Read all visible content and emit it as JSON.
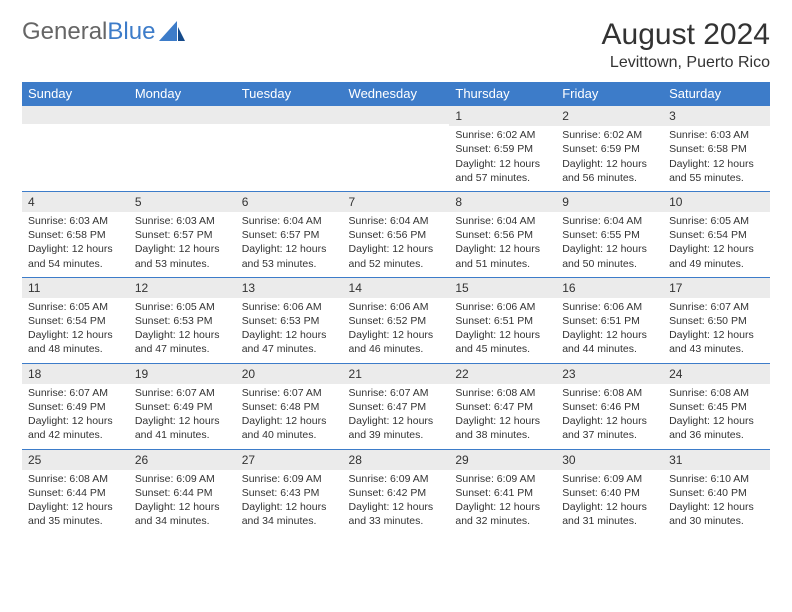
{
  "logo": {
    "text_general": "General",
    "text_blue": "Blue"
  },
  "title": "August 2024",
  "location": "Levittown, Puerto Rico",
  "colors": {
    "header_bg": "#3d7cc9",
    "header_text": "#ffffff",
    "daynum_bg": "#ebebeb",
    "border": "#3d7cc9",
    "body_text": "#333333",
    "background": "#ffffff"
  },
  "day_headers": [
    "Sunday",
    "Monday",
    "Tuesday",
    "Wednesday",
    "Thursday",
    "Friday",
    "Saturday"
  ],
  "weeks": [
    [
      {
        "n": "",
        "sunrise": "",
        "sunset": "",
        "daylight": ""
      },
      {
        "n": "",
        "sunrise": "",
        "sunset": "",
        "daylight": ""
      },
      {
        "n": "",
        "sunrise": "",
        "sunset": "",
        "daylight": ""
      },
      {
        "n": "",
        "sunrise": "",
        "sunset": "",
        "daylight": ""
      },
      {
        "n": "1",
        "sunrise": "Sunrise: 6:02 AM",
        "sunset": "Sunset: 6:59 PM",
        "daylight": "Daylight: 12 hours and 57 minutes."
      },
      {
        "n": "2",
        "sunrise": "Sunrise: 6:02 AM",
        "sunset": "Sunset: 6:59 PM",
        "daylight": "Daylight: 12 hours and 56 minutes."
      },
      {
        "n": "3",
        "sunrise": "Sunrise: 6:03 AM",
        "sunset": "Sunset: 6:58 PM",
        "daylight": "Daylight: 12 hours and 55 minutes."
      }
    ],
    [
      {
        "n": "4",
        "sunrise": "Sunrise: 6:03 AM",
        "sunset": "Sunset: 6:58 PM",
        "daylight": "Daylight: 12 hours and 54 minutes."
      },
      {
        "n": "5",
        "sunrise": "Sunrise: 6:03 AM",
        "sunset": "Sunset: 6:57 PM",
        "daylight": "Daylight: 12 hours and 53 minutes."
      },
      {
        "n": "6",
        "sunrise": "Sunrise: 6:04 AM",
        "sunset": "Sunset: 6:57 PM",
        "daylight": "Daylight: 12 hours and 53 minutes."
      },
      {
        "n": "7",
        "sunrise": "Sunrise: 6:04 AM",
        "sunset": "Sunset: 6:56 PM",
        "daylight": "Daylight: 12 hours and 52 minutes."
      },
      {
        "n": "8",
        "sunrise": "Sunrise: 6:04 AM",
        "sunset": "Sunset: 6:56 PM",
        "daylight": "Daylight: 12 hours and 51 minutes."
      },
      {
        "n": "9",
        "sunrise": "Sunrise: 6:04 AM",
        "sunset": "Sunset: 6:55 PM",
        "daylight": "Daylight: 12 hours and 50 minutes."
      },
      {
        "n": "10",
        "sunrise": "Sunrise: 6:05 AM",
        "sunset": "Sunset: 6:54 PM",
        "daylight": "Daylight: 12 hours and 49 minutes."
      }
    ],
    [
      {
        "n": "11",
        "sunrise": "Sunrise: 6:05 AM",
        "sunset": "Sunset: 6:54 PM",
        "daylight": "Daylight: 12 hours and 48 minutes."
      },
      {
        "n": "12",
        "sunrise": "Sunrise: 6:05 AM",
        "sunset": "Sunset: 6:53 PM",
        "daylight": "Daylight: 12 hours and 47 minutes."
      },
      {
        "n": "13",
        "sunrise": "Sunrise: 6:06 AM",
        "sunset": "Sunset: 6:53 PM",
        "daylight": "Daylight: 12 hours and 47 minutes."
      },
      {
        "n": "14",
        "sunrise": "Sunrise: 6:06 AM",
        "sunset": "Sunset: 6:52 PM",
        "daylight": "Daylight: 12 hours and 46 minutes."
      },
      {
        "n": "15",
        "sunrise": "Sunrise: 6:06 AM",
        "sunset": "Sunset: 6:51 PM",
        "daylight": "Daylight: 12 hours and 45 minutes."
      },
      {
        "n": "16",
        "sunrise": "Sunrise: 6:06 AM",
        "sunset": "Sunset: 6:51 PM",
        "daylight": "Daylight: 12 hours and 44 minutes."
      },
      {
        "n": "17",
        "sunrise": "Sunrise: 6:07 AM",
        "sunset": "Sunset: 6:50 PM",
        "daylight": "Daylight: 12 hours and 43 minutes."
      }
    ],
    [
      {
        "n": "18",
        "sunrise": "Sunrise: 6:07 AM",
        "sunset": "Sunset: 6:49 PM",
        "daylight": "Daylight: 12 hours and 42 minutes."
      },
      {
        "n": "19",
        "sunrise": "Sunrise: 6:07 AM",
        "sunset": "Sunset: 6:49 PM",
        "daylight": "Daylight: 12 hours and 41 minutes."
      },
      {
        "n": "20",
        "sunrise": "Sunrise: 6:07 AM",
        "sunset": "Sunset: 6:48 PM",
        "daylight": "Daylight: 12 hours and 40 minutes."
      },
      {
        "n": "21",
        "sunrise": "Sunrise: 6:07 AM",
        "sunset": "Sunset: 6:47 PM",
        "daylight": "Daylight: 12 hours and 39 minutes."
      },
      {
        "n": "22",
        "sunrise": "Sunrise: 6:08 AM",
        "sunset": "Sunset: 6:47 PM",
        "daylight": "Daylight: 12 hours and 38 minutes."
      },
      {
        "n": "23",
        "sunrise": "Sunrise: 6:08 AM",
        "sunset": "Sunset: 6:46 PM",
        "daylight": "Daylight: 12 hours and 37 minutes."
      },
      {
        "n": "24",
        "sunrise": "Sunrise: 6:08 AM",
        "sunset": "Sunset: 6:45 PM",
        "daylight": "Daylight: 12 hours and 36 minutes."
      }
    ],
    [
      {
        "n": "25",
        "sunrise": "Sunrise: 6:08 AM",
        "sunset": "Sunset: 6:44 PM",
        "daylight": "Daylight: 12 hours and 35 minutes."
      },
      {
        "n": "26",
        "sunrise": "Sunrise: 6:09 AM",
        "sunset": "Sunset: 6:44 PM",
        "daylight": "Daylight: 12 hours and 34 minutes."
      },
      {
        "n": "27",
        "sunrise": "Sunrise: 6:09 AM",
        "sunset": "Sunset: 6:43 PM",
        "daylight": "Daylight: 12 hours and 34 minutes."
      },
      {
        "n": "28",
        "sunrise": "Sunrise: 6:09 AM",
        "sunset": "Sunset: 6:42 PM",
        "daylight": "Daylight: 12 hours and 33 minutes."
      },
      {
        "n": "29",
        "sunrise": "Sunrise: 6:09 AM",
        "sunset": "Sunset: 6:41 PM",
        "daylight": "Daylight: 12 hours and 32 minutes."
      },
      {
        "n": "30",
        "sunrise": "Sunrise: 6:09 AM",
        "sunset": "Sunset: 6:40 PM",
        "daylight": "Daylight: 12 hours and 31 minutes."
      },
      {
        "n": "31",
        "sunrise": "Sunrise: 6:10 AM",
        "sunset": "Sunset: 6:40 PM",
        "daylight": "Daylight: 12 hours and 30 minutes."
      }
    ]
  ]
}
